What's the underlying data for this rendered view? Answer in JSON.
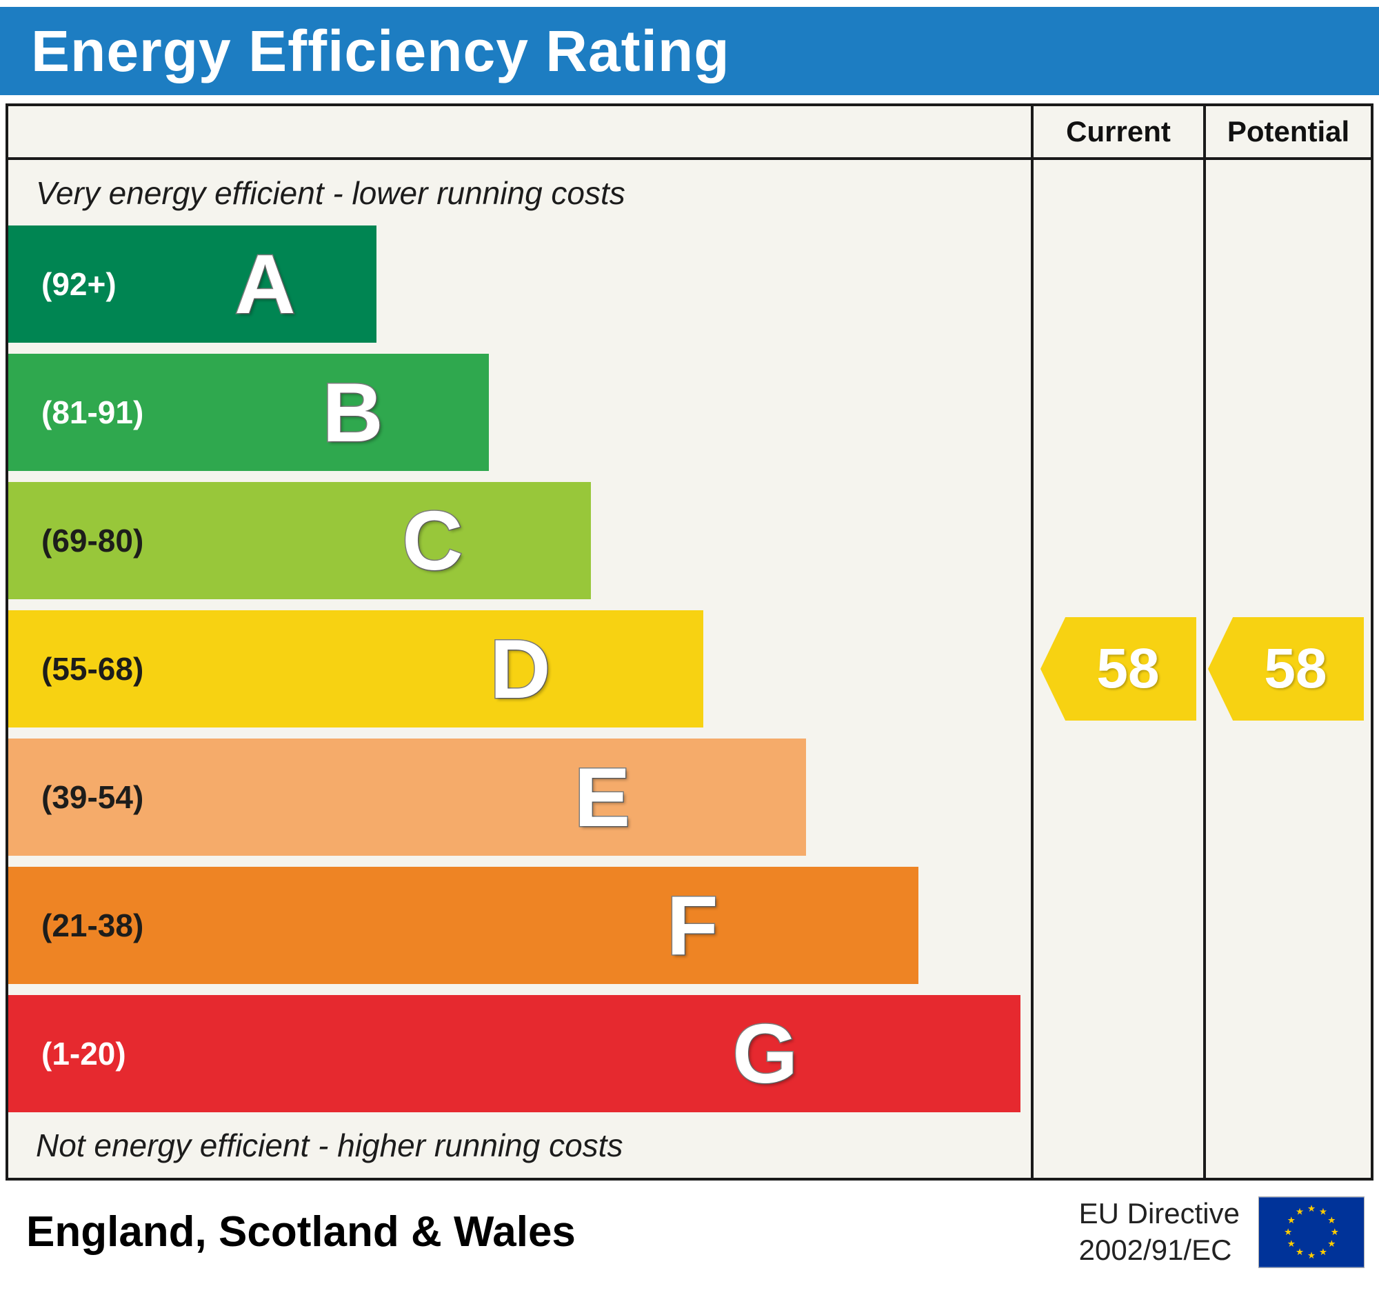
{
  "header": {
    "title": "Energy Efficiency Rating"
  },
  "columns": {
    "current_label": "Current",
    "potential_label": "Potential"
  },
  "notes": {
    "top": "Very energy efficient - lower running costs",
    "bottom": "Not energy efficient - higher running costs"
  },
  "footer": {
    "region": "England, Scotland & Wales",
    "directive_line1": "EU Directive",
    "directive_line2": "2002/91/EC",
    "flag_icon": "eu-flag-icon"
  },
  "colors": {
    "header_bg": "#1d7dc2",
    "frame_bg": "#f5f4ee",
    "border": "#1a1a1a",
    "eu_flag_bg": "#003399",
    "eu_flag_star": "#ffcc00"
  },
  "chart_data": {
    "type": "bar",
    "orientation": "horizontal",
    "title": "Energy Efficiency Rating",
    "value_range": [
      1,
      100
    ],
    "bands": [
      {
        "letter": "A",
        "range_label": "(92+)",
        "range": [
          92,
          100
        ],
        "color": "#008552",
        "label_color": "#ffffff",
        "width_pct": 36
      },
      {
        "letter": "B",
        "range_label": "(81-91)",
        "range": [
          81,
          91
        ],
        "color": "#2fa84e",
        "label_color": "#ffffff",
        "width_pct": 47
      },
      {
        "letter": "C",
        "range_label": "(69-80)",
        "range": [
          69,
          80
        ],
        "color": "#98c73a",
        "label_color": "#1d1d1b",
        "width_pct": 57
      },
      {
        "letter": "D",
        "range_label": "(55-68)",
        "range": [
          55,
          68
        ],
        "color": "#f7d212",
        "label_color": "#1d1d1b",
        "width_pct": 68
      },
      {
        "letter": "E",
        "range_label": "(39-54)",
        "range": [
          39,
          54
        ],
        "color": "#f5ab6a",
        "label_color": "#1d1d1b",
        "width_pct": 78
      },
      {
        "letter": "F",
        "range_label": "(21-38)",
        "range": [
          21,
          38
        ],
        "color": "#ee8424",
        "label_color": "#1d1d1b",
        "width_pct": 89
      },
      {
        "letter": "G",
        "range_label": "(1-20)",
        "range": [
          1,
          20
        ],
        "color": "#e6292f",
        "label_color": "#ffffff",
        "width_pct": 99
      }
    ],
    "current": {
      "value": 58,
      "band": "D",
      "color": "#f7d212"
    },
    "potential": {
      "value": 58,
      "band": "D",
      "color": "#f7d212"
    }
  }
}
